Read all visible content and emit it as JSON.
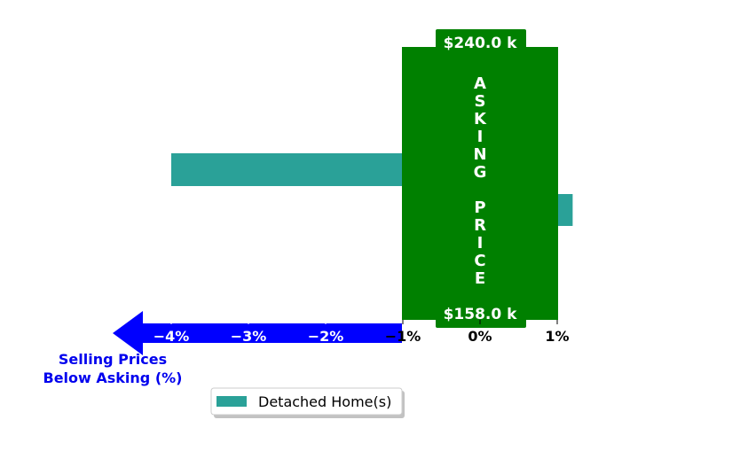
{
  "chart_data": {
    "type": "bar",
    "orientation": "horizontal",
    "series": [
      {
        "name": "Detached Home(s)",
        "values": [
          -4.0,
          1.2
        ]
      }
    ],
    "x_ticks": [
      "−4%",
      "−3%",
      "−2%",
      "−1%",
      "0%",
      "1%"
    ],
    "x_tick_values": [
      -4,
      -3,
      -2,
      -1,
      0,
      1
    ],
    "xlim": [
      -4.8,
      1.2
    ],
    "xlabel": "Selling Prices\nBelow Asking (%)",
    "band": {
      "text": "ASKING PRICE",
      "from": -1,
      "to": 1,
      "top_label": "$240.0 k",
      "bottom_label": "$158.0 k"
    },
    "legend": {
      "entries": [
        "Detached Home(s)"
      ],
      "placement": "lower-center"
    },
    "colors": {
      "bar": "#2aa198",
      "band": "#008000",
      "arrow": "#0000ff",
      "xlabel": "#0000ee"
    },
    "grid": false
  }
}
